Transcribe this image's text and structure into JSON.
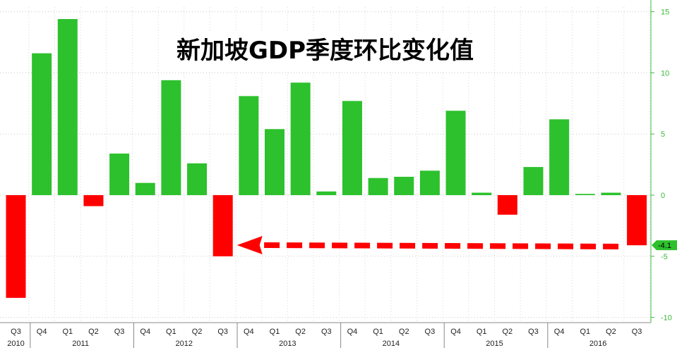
{
  "chart_data": {
    "type": "bar",
    "title": "新加坡GDP季度环比变化值",
    "categories": [
      "Q3",
      "Q4",
      "Q1",
      "Q2",
      "Q3",
      "Q4",
      "Q1",
      "Q2",
      "Q3",
      "Q4",
      "Q1",
      "Q2",
      "Q3",
      "Q4",
      "Q1",
      "Q2",
      "Q3",
      "Q4",
      "Q1",
      "Q2",
      "Q3",
      "Q4",
      "Q1",
      "Q2",
      "Q3"
    ],
    "years": [
      {
        "label": "2010",
        "first_index": 0,
        "last_index": 0
      },
      {
        "label": "2011",
        "first_index": 1,
        "last_index": 4
      },
      {
        "label": "2012",
        "first_index": 5,
        "last_index": 8
      },
      {
        "label": "2013",
        "first_index": 9,
        "last_index": 12
      },
      {
        "label": "2014",
        "first_index": 13,
        "last_index": 16
      },
      {
        "label": "2015",
        "first_index": 17,
        "last_index": 20
      },
      {
        "label": "2016",
        "first_index": 21,
        "last_index": 24
      }
    ],
    "values": [
      -8.4,
      11.6,
      14.4,
      -0.9,
      3.4,
      1.0,
      9.4,
      2.6,
      -5.0,
      8.1,
      5.4,
      9.2,
      0.3,
      7.7,
      1.4,
      1.5,
      2.0,
      6.9,
      0.2,
      -1.6,
      2.3,
      6.2,
      0.1,
      0.2,
      -4.1
    ],
    "ylim": [
      -10,
      15
    ],
    "yticks": [
      "15",
      "10",
      "5",
      "0",
      "-5",
      "-10"
    ],
    "last_value_label": "-4.1",
    "colors": {
      "positive": "#2dc12d",
      "negative": "#ff0000",
      "axis_text": "#3cb83c",
      "arrow": "#ff0000"
    },
    "grid": true,
    "annotation": "red dashed arrow from the 2016 Q3 bar pointing left to the 2012 Q3 bar"
  }
}
